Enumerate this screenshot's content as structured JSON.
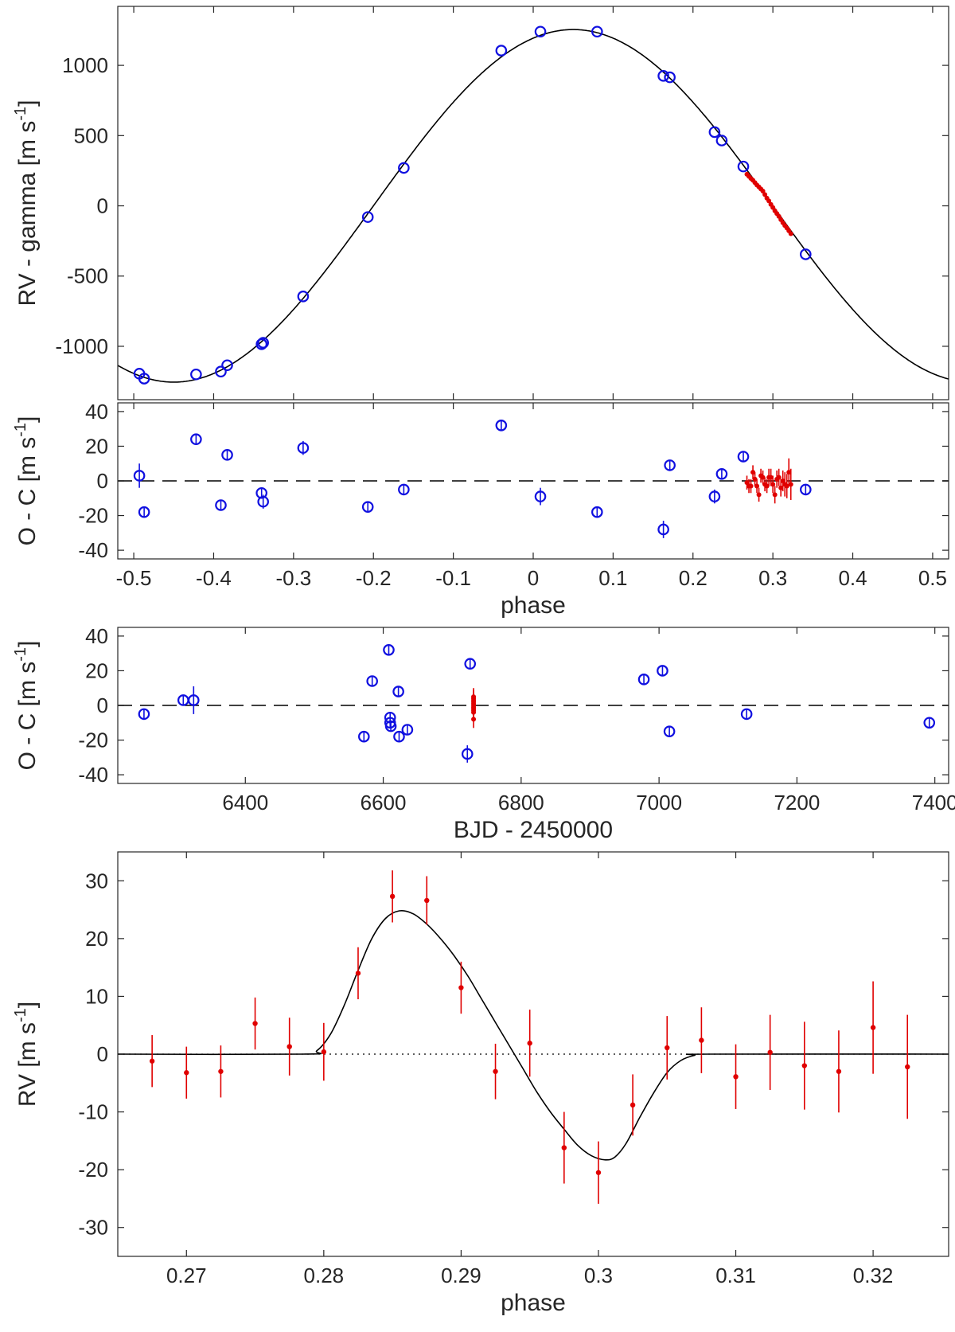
{
  "chart_data": [
    {
      "id": "rv_phase",
      "type": "scatter",
      "title": "",
      "xlabel": "",
      "ylabel": "RV - gamma [m s",
      "ylabel_sup": "-1",
      "ylabel_end": "]",
      "xlim": [
        -0.52,
        0.52
      ],
      "ylim": [
        -1380,
        1420
      ],
      "xticks": [
        -0.5,
        -0.4,
        -0.3,
        -0.2,
        -0.1,
        0,
        0.1,
        0.2,
        0.3,
        0.4,
        0.5
      ],
      "yticks": [
        -1000,
        -500,
        0,
        500,
        1000
      ],
      "ytick_labels": [
        "-1000",
        "-500",
        "0",
        "500",
        "1000"
      ],
      "model": {
        "K": 1255,
        "phase_offset": 0.05
      },
      "series": [
        {
          "name": "other",
          "color": "#1010e0",
          "marker": "open-circle",
          "x": [
            -0.493,
            -0.487,
            -0.422,
            -0.391,
            -0.383,
            -0.34,
            -0.338,
            -0.288,
            -0.207,
            -0.162,
            -0.04,
            0.009,
            0.08,
            0.163,
            0.171,
            0.227,
            0.236,
            0.263,
            0.341
          ],
          "y": [
            -1195,
            -1230,
            -1200,
            -1180,
            -1135,
            -985,
            -975,
            -645,
            -80,
            270,
            1105,
            1240,
            1240,
            925,
            915,
            525,
            465,
            280,
            -345
          ]
        },
        {
          "name": "transit",
          "color": "#e00000",
          "marker": "dot",
          "x": [
            0.2675,
            0.27,
            0.2725,
            0.275,
            0.2775,
            0.28,
            0.2825,
            0.285,
            0.2875,
            0.29,
            0.2925,
            0.295,
            0.2975,
            0.3,
            0.3025,
            0.305,
            0.3075,
            0.31,
            0.3125,
            0.315,
            0.3175,
            0.32,
            0.3225
          ],
          "y": [
            225,
            210,
            195,
            182,
            165,
            148,
            135,
            120,
            105,
            80,
            55,
            35,
            10,
            -12,
            -35,
            -55,
            -75,
            -98,
            -120,
            -140,
            -158,
            -178,
            -198
          ]
        }
      ]
    },
    {
      "id": "oc_phase",
      "type": "scatter",
      "title": "",
      "xlabel": "phase",
      "ylabel": "O - C [m s",
      "ylabel_sup": "-1",
      "ylabel_end": "]",
      "xlim": [
        -0.52,
        0.52
      ],
      "ylim": [
        -45,
        45
      ],
      "xticks": [
        -0.5,
        -0.4,
        -0.3,
        -0.2,
        -0.1,
        0,
        0.1,
        0.2,
        0.3,
        0.4,
        0.5
      ],
      "xtick_labels": [
        "-0.5",
        "-0.4",
        "-0.3",
        "-0.2",
        "-0.1",
        "0",
        "0.1",
        "0.2",
        "0.3",
        "0.4",
        "0.5"
      ],
      "yticks": [
        -40,
        -20,
        0,
        20,
        40
      ],
      "ytick_labels": [
        "-40",
        "-20",
        "0",
        "20",
        "40"
      ],
      "series": [
        {
          "name": "other",
          "color": "#1010e0",
          "marker": "open-circle",
          "x": [
            -0.493,
            -0.487,
            -0.422,
            -0.391,
            -0.383,
            -0.34,
            -0.338,
            -0.288,
            -0.207,
            -0.162,
            -0.04,
            0.009,
            0.08,
            0.163,
            0.171,
            0.227,
            0.236,
            0.263,
            0.341
          ],
          "y": [
            3,
            -18,
            24,
            -14,
            15,
            -7,
            -12,
            19,
            -15,
            -5,
            32,
            -9,
            -18,
            -28,
            9,
            -9,
            4,
            14,
            -5
          ],
          "err": [
            7,
            3,
            3,
            3,
            3,
            3,
            4,
            4,
            3,
            3,
            3,
            5,
            3,
            5,
            3,
            4,
            3,
            3,
            3
          ]
        },
        {
          "name": "transit",
          "color": "#e00000",
          "marker": "dot",
          "x": [
            0.2675,
            0.27,
            0.2725,
            0.275,
            0.2775,
            0.28,
            0.2825,
            0.285,
            0.2875,
            0.29,
            0.2925,
            0.295,
            0.2975,
            0.3,
            0.3025,
            0.305,
            0.3075,
            0.31,
            0.3125,
            0.315,
            0.3175,
            0.32,
            0.3225
          ],
          "y": [
            -1,
            -3,
            -3,
            5,
            1,
            -3,
            -8,
            3,
            2,
            -2,
            -3,
            2,
            2,
            -2,
            -8,
            1,
            2,
            -4,
            0,
            -2,
            -3,
            5,
            -2
          ],
          "err": [
            4,
            4,
            4,
            4,
            4,
            4,
            4,
            4,
            4,
            4,
            4,
            5,
            5,
            5,
            5,
            5,
            5,
            5,
            6,
            7,
            7,
            8,
            9
          ]
        }
      ]
    },
    {
      "id": "oc_time",
      "type": "scatter",
      "title": "",
      "xlabel": "BJD - 2450000",
      "ylabel": "O - C [m s",
      "ylabel_sup": "-1",
      "ylabel_end": "]",
      "xlim": [
        6215,
        7420
      ],
      "ylim": [
        -45,
        45
      ],
      "xticks": [
        6400,
        6600,
        6800,
        7000,
        7200,
        7400
      ],
      "xtick_labels": [
        "6400",
        "6600",
        "6800",
        "7000",
        "7200",
        "7400"
      ],
      "yticks": [
        -40,
        -20,
        0,
        20,
        40
      ],
      "ytick_labels": [
        "-40",
        "-20",
        "0",
        "20",
        "40"
      ],
      "series": [
        {
          "name": "other",
          "color": "#1010e0",
          "marker": "open-circle",
          "x": [
            6253,
            6310,
            6325,
            6572,
            6584,
            6608,
            6610,
            6610,
            6611,
            6622,
            6623,
            6635,
            6722,
            6726,
            6978,
            7005,
            7015,
            7127,
            7392
          ],
          "y": [
            -5,
            3,
            3,
            -18,
            14,
            32,
            -7,
            -10,
            -12,
            8,
            -18,
            -14,
            -28,
            24,
            15,
            20,
            -15,
            -5,
            -10
          ],
          "err": [
            3,
            3,
            8,
            3,
            3,
            3,
            3,
            3,
            3,
            3,
            3,
            3,
            5,
            3,
            3,
            3,
            3,
            3,
            3
          ]
        },
        {
          "name": "transit",
          "color": "#e00000",
          "marker": "dot",
          "x": [
            6731,
            6731,
            6731,
            6731,
            6731,
            6731,
            6731,
            6731,
            6731,
            6731,
            6731
          ],
          "y": [
            5,
            3,
            1,
            -1,
            -3,
            2,
            -2,
            -8,
            0,
            -4,
            4
          ],
          "err": [
            5,
            5,
            5,
            5,
            5,
            5,
            5,
            5,
            5,
            5,
            5
          ]
        }
      ]
    },
    {
      "id": "rm_zoom",
      "type": "scatter",
      "title": "",
      "xlabel": "phase",
      "ylabel": "RV  [m s",
      "ylabel_sup": "-1",
      "ylabel_end": "]",
      "xlim": [
        0.265,
        0.3255
      ],
      "ylim": [
        -35,
        35
      ],
      "xticks": [
        0.27,
        0.28,
        0.29,
        0.3,
        0.31,
        0.32
      ],
      "xtick_labels": [
        "0.27",
        "0.28",
        "0.29",
        "0.3",
        "0.31",
        "0.32"
      ],
      "yticks": [
        -30,
        -20,
        -10,
        0,
        10,
        20,
        30
      ],
      "ytick_labels": [
        "-30",
        "-20",
        "-10",
        "0",
        "10",
        "20",
        "30"
      ],
      "model_points": {
        "x": [
          0.265,
          0.2785,
          0.2795,
          0.2805,
          0.2815,
          0.2825,
          0.2835,
          0.2845,
          0.2855,
          0.2865,
          0.2875,
          0.2885,
          0.2895,
          0.2905,
          0.2915,
          0.2925,
          0.2935,
          0.2945,
          0.2955,
          0.2965,
          0.2975,
          0.2985,
          0.2995,
          0.3005,
          0.3012,
          0.302,
          0.303,
          0.304,
          0.305,
          0.306,
          0.307,
          0.308,
          0.3255
        ],
        "y": [
          0,
          0,
          0.6,
          3.5,
          8.5,
          14.5,
          20,
          23.5,
          24.8,
          24.3,
          22.5,
          20,
          17,
          13.5,
          9.5,
          5.5,
          1.5,
          -2.5,
          -6.5,
          -10,
          -13,
          -15.8,
          -17.6,
          -18.3,
          -17.8,
          -15.5,
          -11,
          -6.8,
          -3.2,
          -1.1,
          -0.2,
          0,
          0
        ]
      },
      "series": [
        {
          "name": "transit",
          "color": "#e00000",
          "marker": "dot",
          "x": [
            0.2675,
            0.27,
            0.2725,
            0.275,
            0.2775,
            0.28,
            0.2825,
            0.285,
            0.2875,
            0.29,
            0.2925,
            0.295,
            0.2975,
            0.3,
            0.3025,
            0.305,
            0.3075,
            0.31,
            0.3125,
            0.315,
            0.3175,
            0.32,
            0.3225
          ],
          "y": [
            -1.2,
            -3.2,
            -3.0,
            5.3,
            1.3,
            0.4,
            14.0,
            27.3,
            26.6,
            11.5,
            -3.0,
            1.9,
            -16.2,
            -20.5,
            -8.8,
            1.1,
            2.4,
            -3.9,
            0.3,
            -2.0,
            -3.0,
            4.6,
            -2.2
          ],
          "err": [
            4.5,
            4.5,
            4.5,
            4.5,
            5.0,
            5.0,
            4.5,
            4.5,
            4.2,
            4.5,
            4.8,
            5.8,
            6.2,
            5.4,
            5.3,
            5.5,
            5.7,
            5.6,
            6.5,
            7.6,
            7.1,
            8.0,
            9.0
          ]
        }
      ]
    }
  ]
}
